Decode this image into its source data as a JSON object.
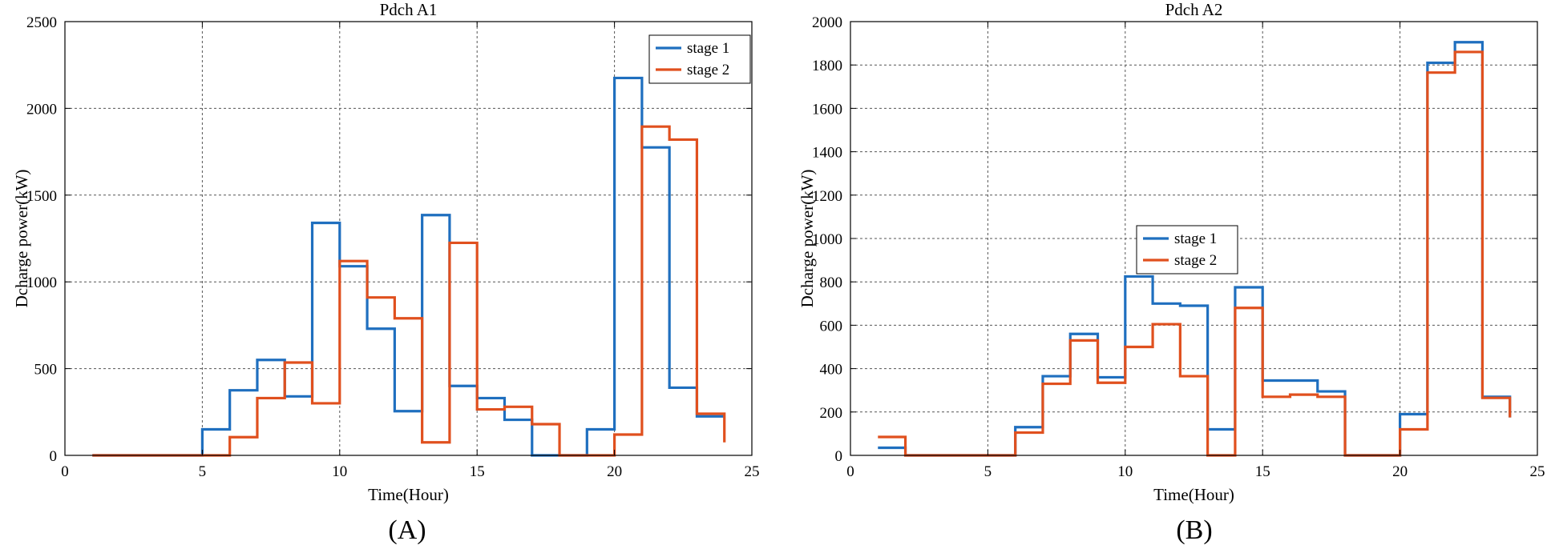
{
  "colors": {
    "stage1": "#1f6fbf",
    "stage2": "#e0501e",
    "grid": "#555555",
    "axis": "#000000"
  },
  "chart_data": [
    {
      "type": "line",
      "step": true,
      "panel_label": "(A)",
      "title": "Pdch A1",
      "xlabel": "Time(Hour)",
      "ylabel": "Dcharge power(kW)",
      "xlim": [
        0,
        25
      ],
      "ylim": [
        0,
        2500
      ],
      "xticks": [
        0,
        5,
        10,
        15,
        20,
        25
      ],
      "yticks": [
        0,
        500,
        1000,
        1500,
        2000,
        2500
      ],
      "grid": true,
      "legend_position": "top-right",
      "x": [
        1,
        2,
        3,
        4,
        5,
        6,
        7,
        8,
        9,
        10,
        11,
        12,
        13,
        14,
        15,
        16,
        17,
        18,
        19,
        20,
        21,
        22,
        23,
        24
      ],
      "series": [
        {
          "name": "stage 1",
          "values": [
            0,
            0,
            0,
            0,
            150,
            375,
            550,
            340,
            1340,
            1090,
            730,
            255,
            1385,
            400,
            330,
            205,
            0,
            0,
            150,
            2175,
            1775,
            390,
            225,
            225
          ]
        },
        {
          "name": "stage 2",
          "values": [
            0,
            0,
            0,
            0,
            0,
            105,
            330,
            535,
            300,
            1120,
            910,
            790,
            75,
            1225,
            265,
            280,
            180,
            0,
            0,
            120,
            1895,
            1820,
            240,
            75
          ]
        }
      ]
    },
    {
      "type": "line",
      "step": true,
      "panel_label": "(B)",
      "title": "Pdch A2",
      "xlabel": "Time(Hour)",
      "ylabel": "Dcharge power(kW)",
      "xlim": [
        0,
        25
      ],
      "ylim": [
        0,
        2000
      ],
      "xticks": [
        0,
        5,
        10,
        15,
        20,
        25
      ],
      "yticks": [
        0,
        200,
        400,
        600,
        800,
        1000,
        1200,
        1400,
        1600,
        1800,
        2000
      ],
      "grid": true,
      "legend_position": "center",
      "x": [
        1,
        2,
        3,
        4,
        5,
        6,
        7,
        8,
        9,
        10,
        11,
        12,
        13,
        14,
        15,
        16,
        17,
        18,
        19,
        20,
        21,
        22,
        23,
        24
      ],
      "series": [
        {
          "name": "stage 1",
          "values": [
            35,
            0,
            0,
            0,
            0,
            130,
            365,
            560,
            360,
            825,
            700,
            690,
            120,
            775,
            345,
            345,
            295,
            0,
            0,
            190,
            1810,
            1905,
            270,
            175
          ]
        },
        {
          "name": "stage 2",
          "values": [
            85,
            0,
            0,
            0,
            0,
            105,
            330,
            530,
            335,
            500,
            605,
            365,
            0,
            680,
            270,
            280,
            270,
            0,
            0,
            120,
            1765,
            1860,
            265,
            175
          ]
        }
      ]
    }
  ]
}
